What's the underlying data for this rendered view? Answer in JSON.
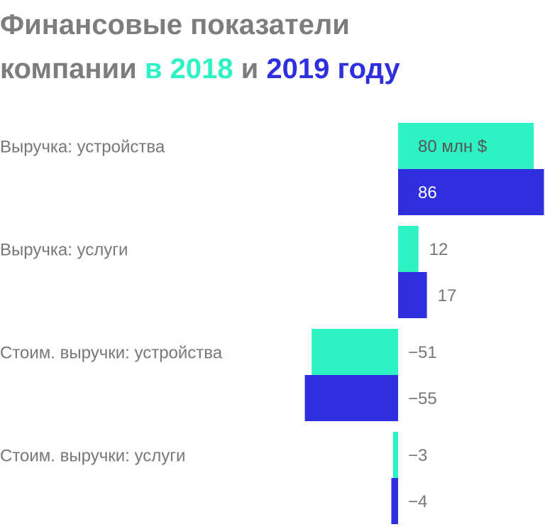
{
  "chart_data": {
    "type": "bar",
    "orientation": "horizontal",
    "title": "Финансовые показатели компании",
    "legend_joiner": "и",
    "categories": [
      "Выручка: устройства",
      "Выручка: услуги",
      "Стоим. выручки: устройства",
      "Стоим. выручки: услуги"
    ],
    "series": [
      {
        "name": "в 2018",
        "color": "#2ef2c3",
        "values": [
          80,
          12,
          -51,
          -3
        ],
        "value_labels": [
          "80 млн $",
          "12",
          "−51",
          "−3"
        ]
      },
      {
        "name": "2019 году",
        "color": "#2f2fe0",
        "values": [
          86,
          17,
          -55,
          -4
        ],
        "value_labels": [
          "86",
          "17",
          "−55",
          "−4"
        ]
      }
    ]
  }
}
